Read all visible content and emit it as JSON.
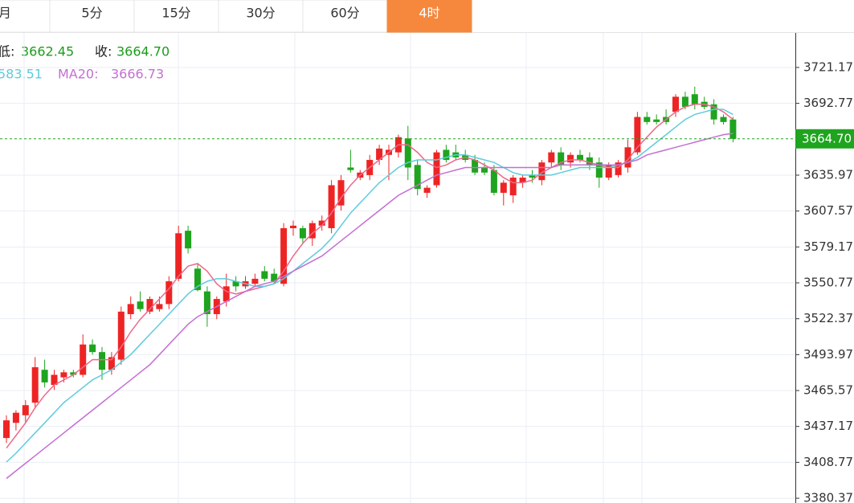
{
  "tabs": [
    "月",
    "5分",
    "15分",
    "30分",
    "60分",
    "4时"
  ],
  "active_tab": 5,
  "info": {
    "low_label": "低:",
    "low_value": "3662.45",
    "close_label": "收:",
    "close_value": "3664.70",
    "ma10_value": "583.51",
    "ma20_label": "MA20:",
    "ma20_value": "3666.73"
  },
  "chart_data": {
    "type": "candlestick",
    "ylim": [
      3376.6,
      3749.1
    ],
    "yticks": [
      3721.17,
      3692.77,
      3635.97,
      3607.57,
      3579.17,
      3550.77,
      3522.37,
      3493.97,
      3465.57,
      3437.17,
      3408.77,
      3380.37
    ],
    "grid": true,
    "up_color": "#ee2424",
    "down_color": "#1ea41e",
    "last_price": {
      "value": 3664.7,
      "label": "3664.70"
    },
    "last_price_color": "#1ea41e",
    "candles": [
      [
        3428,
        3446,
        3424,
        3442
      ],
      [
        3440,
        3450,
        3434,
        3448
      ],
      [
        3446,
        3458,
        3440,
        3454
      ],
      [
        3456,
        3492,
        3452,
        3484
      ],
      [
        3482,
        3490,
        3468,
        3472
      ],
      [
        3470,
        3482,
        3466,
        3478
      ],
      [
        3476,
        3482,
        3472,
        3480
      ],
      [
        3480,
        3482,
        3476,
        3478
      ],
      [
        3478,
        3510,
        3476,
        3502
      ],
      [
        3502,
        3506,
        3494,
        3496
      ],
      [
        3496,
        3500,
        3474,
        3482
      ],
      [
        3482,
        3496,
        3478,
        3492
      ],
      [
        3490,
        3532,
        3486,
        3528
      ],
      [
        3526,
        3540,
        3522,
        3534
      ],
      [
        3536,
        3544,
        3528,
        3530
      ],
      [
        3528,
        3540,
        3526,
        3538
      ],
      [
        3530,
        3540,
        3528,
        3534
      ],
      [
        3534,
        3556,
        3530,
        3552
      ],
      [
        3554,
        3596,
        3552,
        3590
      ],
      [
        3592,
        3596,
        3574,
        3578
      ],
      [
        3562,
        3566,
        3544,
        3545
      ],
      [
        3544,
        3548,
        3516,
        3526
      ],
      [
        3526,
        3540,
        3522,
        3538
      ],
      [
        3536,
        3558,
        3532,
        3548
      ],
      [
        3552,
        3556,
        3544,
        3548
      ],
      [
        3548,
        3556,
        3546,
        3552
      ],
      [
        3550,
        3558,
        3548,
        3554
      ],
      [
        3560,
        3564,
        3552,
        3554
      ],
      [
        3558,
        3562,
        3550,
        3552
      ],
      [
        3550,
        3598,
        3548,
        3594
      ],
      [
        3594,
        3600,
        3588,
        3596
      ],
      [
        3594,
        3596,
        3582,
        3586
      ],
      [
        3586,
        3600,
        3580,
        3598
      ],
      [
        3596,
        3604,
        3592,
        3600
      ],
      [
        3594,
        3632,
        3590,
        3628
      ],
      [
        3612,
        3636,
        3608,
        3632
      ],
      [
        3642,
        3656,
        3638,
        3640
      ],
      [
        3634,
        3640,
        3632,
        3638
      ],
      [
        3636,
        3652,
        3632,
        3648
      ],
      [
        3648,
        3660,
        3644,
        3657
      ],
      [
        3652,
        3660,
        3632,
        3656
      ],
      [
        3654,
        3668,
        3650,
        3666
      ],
      [
        3665,
        3675,
        3632,
        3642
      ],
      [
        3644,
        3648,
        3620,
        3625
      ],
      [
        3622,
        3628,
        3618,
        3626
      ],
      [
        3628,
        3656,
        3626,
        3654
      ],
      [
        3656,
        3660,
        3646,
        3648
      ],
      [
        3654,
        3660,
        3648,
        3650
      ],
      [
        3652,
        3656,
        3646,
        3648
      ],
      [
        3648,
        3652,
        3636,
        3638
      ],
      [
        3642,
        3646,
        3636,
        3638
      ],
      [
        3640,
        3644,
        3620,
        3622
      ],
      [
        3622,
        3632,
        3612,
        3630
      ],
      [
        3620,
        3636,
        3614,
        3634
      ],
      [
        3630,
        3636,
        3626,
        3634
      ],
      [
        3636,
        3640,
        3630,
        3634
      ],
      [
        3632,
        3648,
        3628,
        3646
      ],
      [
        3646,
        3656,
        3642,
        3654
      ],
      [
        3654,
        3658,
        3640,
        3644
      ],
      [
        3646,
        3654,
        3642,
        3652
      ],
      [
        3652,
        3656,
        3646,
        3648
      ],
      [
        3650,
        3654,
        3640,
        3644
      ],
      [
        3646,
        3650,
        3626,
        3634
      ],
      [
        3634,
        3646,
        3632,
        3644
      ],
      [
        3636,
        3648,
        3634,
        3646
      ],
      [
        3642,
        3664,
        3638,
        3658
      ],
      [
        3654,
        3686,
        3652,
        3682
      ],
      [
        3682,
        3686,
        3676,
        3678
      ],
      [
        3680,
        3684,
        3676,
        3678
      ],
      [
        3682,
        3688,
        3676,
        3678
      ],
      [
        3686,
        3700,
        3682,
        3698
      ],
      [
        3698,
        3702,
        3688,
        3690
      ],
      [
        3700,
        3706,
        3688,
        3692
      ],
      [
        3694,
        3698,
        3688,
        3690
      ],
      [
        3692,
        3696,
        3676,
        3680
      ],
      [
        3682,
        3684,
        3676,
        3678
      ],
      [
        3680,
        3682,
        3662,
        3664.7
      ]
    ],
    "series": [
      {
        "color": "#ec6a8a",
        "values": [
          3420,
          3430,
          3440,
          3452,
          3462,
          3470,
          3474,
          3478,
          3484,
          3490,
          3490,
          3490,
          3500,
          3512,
          3522,
          3530,
          3538,
          3546,
          3556,
          3564,
          3566,
          3560,
          3550,
          3544,
          3542,
          3544,
          3546,
          3548,
          3550,
          3560,
          3572,
          3582,
          3590,
          3596,
          3606,
          3618,
          3628,
          3636,
          3642,
          3648,
          3654,
          3660,
          3660,
          3654,
          3646,
          3642,
          3644,
          3648,
          3650,
          3648,
          3644,
          3640,
          3634,
          3630,
          3630,
          3632,
          3638,
          3642,
          3646,
          3648,
          3648,
          3646,
          3644,
          3642,
          3642,
          3648,
          3658,
          3666,
          3674,
          3680,
          3686,
          3690,
          3692,
          3692,
          3690,
          3686,
          3680
        ]
      },
      {
        "color": "#5fcbdc",
        "values": [
          3409,
          3416,
          3424,
          3432,
          3440,
          3448,
          3456,
          3462,
          3468,
          3474,
          3478,
          3482,
          3488,
          3494,
          3502,
          3510,
          3518,
          3526,
          3534,
          3542,
          3548,
          3552,
          3554,
          3554,
          3552,
          3550,
          3548,
          3548,
          3550,
          3554,
          3560,
          3566,
          3572,
          3578,
          3586,
          3596,
          3606,
          3614,
          3622,
          3630,
          3636,
          3642,
          3646,
          3648,
          3648,
          3648,
          3650,
          3652,
          3652,
          3650,
          3648,
          3646,
          3642,
          3638,
          3636,
          3636,
          3636,
          3636,
          3638,
          3640,
          3642,
          3642,
          3642,
          3642,
          3644,
          3646,
          3650,
          3656,
          3662,
          3668,
          3674,
          3680,
          3684,
          3686,
          3688,
          3688,
          3684
        ]
      },
      {
        "color": "#c46fd2",
        "values": [
          3396,
          3402,
          3408,
          3414,
          3420,
          3426,
          3432,
          3438,
          3444,
          3450,
          3456,
          3462,
          3468,
          3474,
          3480,
          3486,
          3494,
          3502,
          3510,
          3518,
          3524,
          3528,
          3532,
          3536,
          3540,
          3544,
          3548,
          3550,
          3552,
          3556,
          3560,
          3564,
          3568,
          3572,
          3578,
          3584,
          3590,
          3596,
          3602,
          3608,
          3614,
          3620,
          3624,
          3628,
          3632,
          3636,
          3638,
          3640,
          3642,
          3642,
          3642,
          3642,
          3642,
          3642,
          3642,
          3642,
          3642,
          3642,
          3644,
          3644,
          3644,
          3644,
          3644,
          3644,
          3644,
          3646,
          3648,
          3652,
          3654,
          3656,
          3658,
          3660,
          3662,
          3664,
          3666,
          3668,
          3669
        ]
      }
    ]
  }
}
